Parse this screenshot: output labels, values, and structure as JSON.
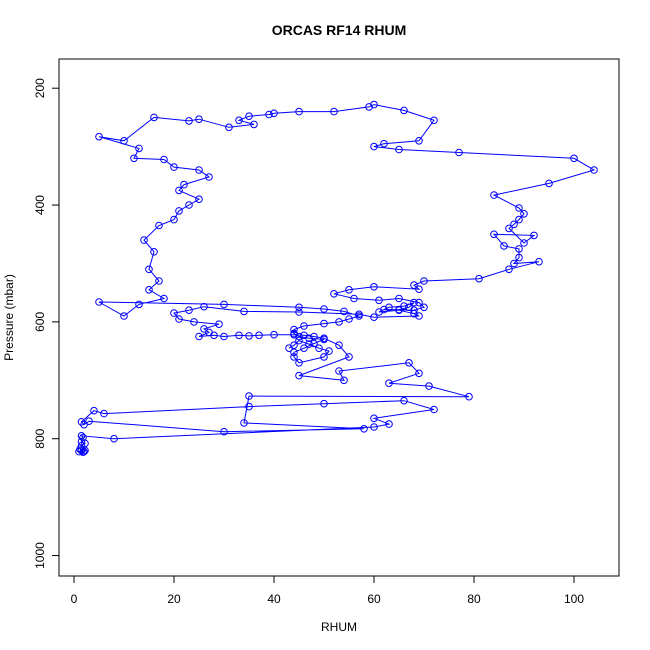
{
  "chart_data": {
    "type": "scatter",
    "title": "ORCAS RF14 RHUM",
    "xlabel": "RHUM",
    "ylabel": "Pressure (mbar)",
    "xlim": [
      -3,
      109
    ],
    "ylim": [
      1035,
      150
    ],
    "y_reversed": true,
    "x_ticks": [
      0,
      20,
      40,
      60,
      80,
      100
    ],
    "y_ticks": [
      200,
      400,
      600,
      800,
      1000
    ],
    "grid": false,
    "legend": "none",
    "series_color": "#0000ff",
    "marker": "open-circle",
    "connect_points": true,
    "points": [
      [
        1,
        822
      ],
      [
        2,
        822
      ],
      [
        1.5,
        820
      ],
      [
        1.2,
        818
      ],
      [
        2.2,
        820
      ],
      [
        1.8,
        823
      ],
      [
        1.5,
        812
      ],
      [
        2.2,
        808
      ],
      [
        1.5,
        805
      ],
      [
        1.8,
        798
      ],
      [
        1.5,
        795
      ],
      [
        8,
        800
      ],
      [
        60,
        780
      ],
      [
        63,
        775
      ],
      [
        60,
        765
      ],
      [
        72,
        750
      ],
      [
        66,
        735
      ],
      [
        50,
        740
      ],
      [
        35,
        745
      ],
      [
        6,
        757
      ],
      [
        4,
        752
      ],
      [
        1.5,
        771
      ],
      [
        2,
        776
      ],
      [
        3,
        770
      ],
      [
        30,
        788
      ],
      [
        58,
        783
      ],
      [
        34,
        773
      ],
      [
        35,
        727
      ],
      [
        79,
        728
      ],
      [
        71,
        710
      ],
      [
        63,
        705
      ],
      [
        69,
        688
      ],
      [
        67,
        670
      ],
      [
        53,
        684
      ],
      [
        54,
        700
      ],
      [
        45,
        692
      ],
      [
        55,
        660
      ],
      [
        53,
        640
      ],
      [
        50,
        628
      ],
      [
        48,
        625
      ],
      [
        46,
        623
      ],
      [
        44,
        622
      ],
      [
        40,
        622
      ],
      [
        37,
        623
      ],
      [
        35,
        624
      ],
      [
        33,
        623
      ],
      [
        30,
        625
      ],
      [
        28,
        623
      ],
      [
        25,
        625
      ],
      [
        27,
        618
      ],
      [
        26,
        612
      ],
      [
        29,
        604
      ],
      [
        24,
        600
      ],
      [
        21,
        595
      ],
      [
        20,
        585
      ],
      [
        23,
        580
      ],
      [
        26,
        574
      ],
      [
        34,
        582
      ],
      [
        45,
        583
      ],
      [
        57,
        587
      ],
      [
        60,
        592
      ],
      [
        69,
        590
      ],
      [
        68,
        586
      ],
      [
        65,
        580
      ],
      [
        61,
        583
      ],
      [
        63,
        575
      ],
      [
        66,
        573
      ],
      [
        68,
        567
      ],
      [
        67,
        575
      ],
      [
        65,
        579
      ],
      [
        62,
        579
      ],
      [
        68,
        580
      ],
      [
        70,
        575
      ],
      [
        69,
        567
      ],
      [
        65,
        560
      ],
      [
        61,
        563
      ],
      [
        56,
        560
      ],
      [
        52,
        552
      ],
      [
        55,
        545
      ],
      [
        60,
        540
      ],
      [
        69,
        544
      ],
      [
        68,
        537
      ],
      [
        70,
        530
      ],
      [
        81,
        526
      ],
      [
        87,
        510
      ],
      [
        93,
        497
      ],
      [
        88,
        500
      ],
      [
        89,
        490
      ],
      [
        89,
        475
      ],
      [
        86,
        470
      ],
      [
        84,
        450
      ],
      [
        92,
        452
      ],
      [
        90,
        465
      ],
      [
        87,
        440
      ],
      [
        88,
        433
      ],
      [
        89,
        425
      ],
      [
        90,
        415
      ],
      [
        89,
        405
      ],
      [
        84,
        383
      ],
      [
        95,
        363
      ],
      [
        104,
        340
      ],
      [
        100,
        320
      ],
      [
        77,
        310
      ],
      [
        65,
        305
      ],
      [
        60,
        300
      ],
      [
        62,
        295
      ],
      [
        69,
        290
      ],
      [
        72,
        255
      ],
      [
        66,
        238
      ],
      [
        60,
        228
      ],
      [
        59,
        232
      ],
      [
        52,
        240
      ],
      [
        45,
        240
      ],
      [
        40,
        243
      ],
      [
        39,
        245
      ],
      [
        35,
        248
      ],
      [
        33,
        255
      ],
      [
        36,
        262
      ],
      [
        31,
        267
      ],
      [
        25,
        253
      ],
      [
        23,
        256
      ],
      [
        16,
        250
      ],
      [
        10,
        290
      ],
      [
        5,
        283
      ],
      [
        13,
        303
      ],
      [
        12,
        320
      ],
      [
        18,
        322
      ],
      [
        20,
        335
      ],
      [
        25,
        340
      ],
      [
        27,
        352
      ],
      [
        22,
        365
      ],
      [
        21,
        375
      ],
      [
        25,
        390
      ],
      [
        23,
        400
      ],
      [
        21,
        410
      ],
      [
        20,
        425
      ],
      [
        17,
        435
      ],
      [
        14,
        460
      ],
      [
        16,
        480
      ],
      [
        15,
        510
      ],
      [
        17,
        530
      ],
      [
        15,
        545
      ],
      [
        18,
        560
      ],
      [
        13,
        570
      ],
      [
        10,
        590
      ],
      [
        5,
        566
      ],
      [
        30,
        570
      ],
      [
        45,
        575
      ],
      [
        50,
        578
      ],
      [
        54,
        582
      ],
      [
        57,
        590
      ],
      [
        55,
        595
      ],
      [
        53,
        600
      ],
      [
        50,
        603
      ],
      [
        46,
        607
      ],
      [
        44,
        613
      ],
      [
        44,
        620
      ],
      [
        45,
        625
      ],
      [
        47,
        628
      ],
      [
        50,
        630
      ],
      [
        48,
        637
      ],
      [
        46,
        645
      ],
      [
        44,
        652
      ],
      [
        44,
        660
      ],
      [
        45,
        670
      ],
      [
        50,
        660
      ],
      [
        51,
        650
      ],
      [
        49,
        645
      ],
      [
        47,
        638
      ],
      [
        45,
        632
      ],
      [
        44,
        640
      ],
      [
        43,
        645
      ]
    ]
  }
}
